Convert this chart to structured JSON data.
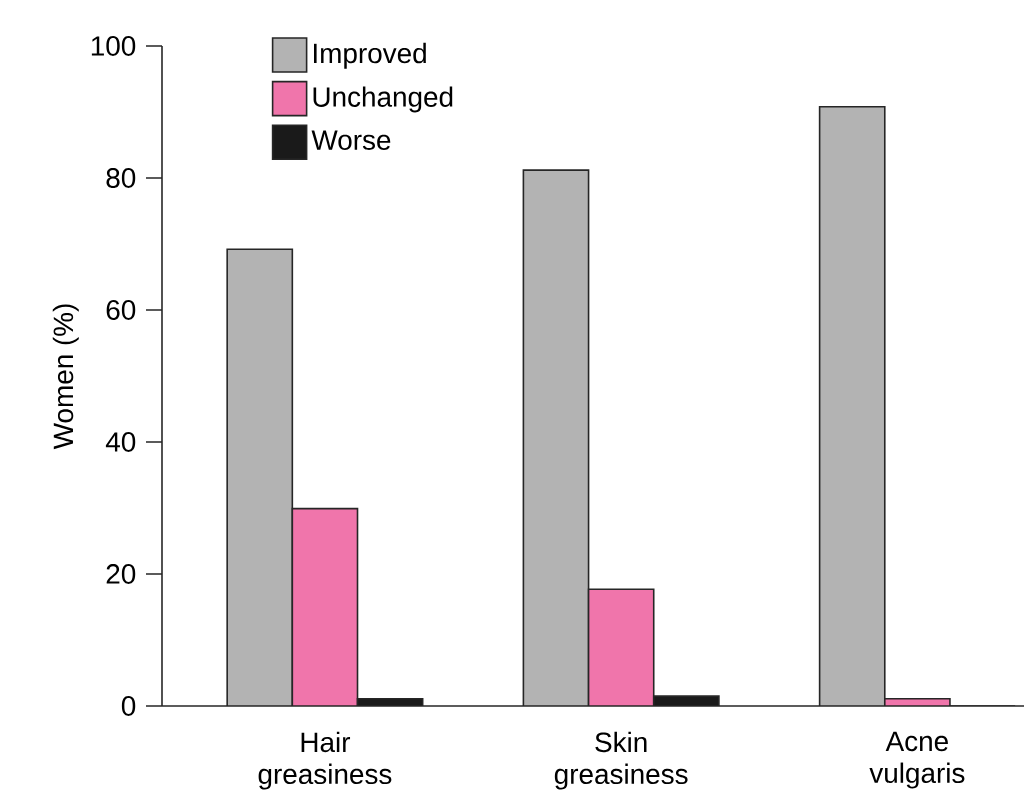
{
  "chart_data": {
    "type": "bar",
    "ylabel": "Women (%)",
    "categories": [
      "Hair greasiness",
      "Skin greasiness",
      "Acne vulgaris"
    ],
    "series": [
      {
        "name": "Improved",
        "color": "#b3b3b3",
        "values": [
          69.2,
          81.2,
          90.8
        ]
      },
      {
        "name": "Unchanged",
        "color": "#f075ab",
        "values": [
          29.9,
          17.7,
          1.1
        ]
      },
      {
        "name": "Worse",
        "color": "#1a1a1a",
        "values": [
          1.1,
          1.5,
          0
        ]
      }
    ],
    "ylim": [
      0,
      100
    ],
    "yticks": [
      0,
      20,
      40,
      60,
      80,
      100
    ],
    "legend": "top left"
  }
}
